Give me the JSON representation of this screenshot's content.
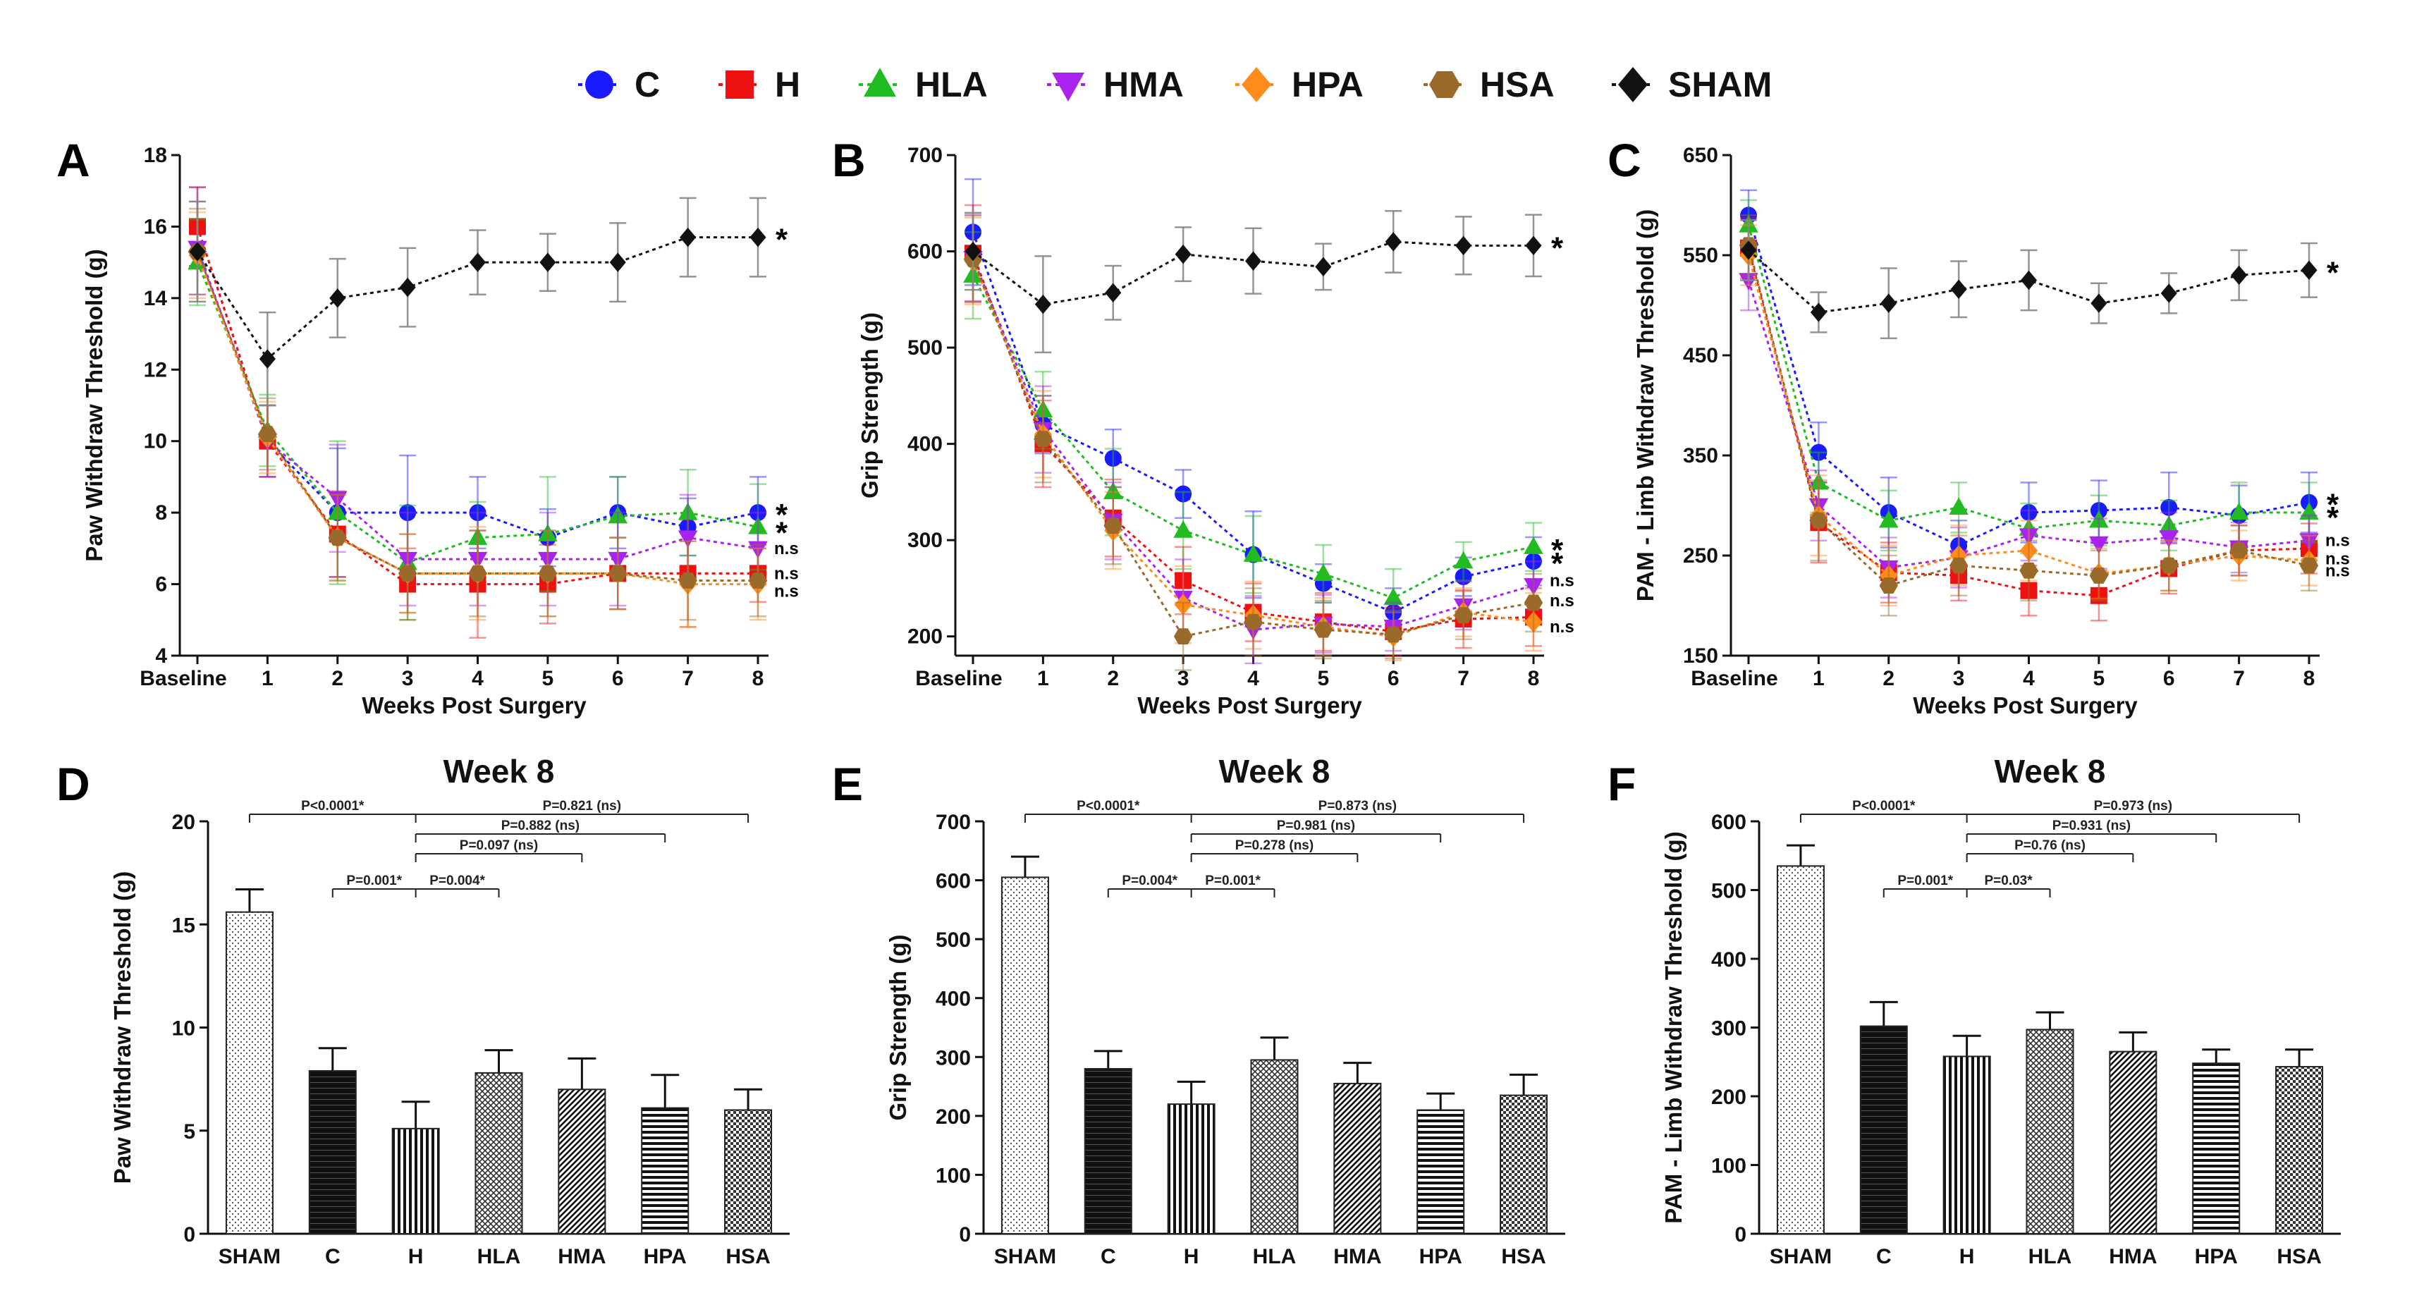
{
  "legend": [
    {
      "key": "C",
      "label": "C",
      "color": "#1a1aff",
      "marker": "circle"
    },
    {
      "key": "H",
      "label": "H",
      "color": "#ee1111",
      "marker": "square"
    },
    {
      "key": "HLA",
      "label": "HLA",
      "color": "#22bb22",
      "marker": "triangle-up"
    },
    {
      "key": "HMA",
      "label": "HMA",
      "color": "#aa22ee",
      "marker": "triangle-down"
    },
    {
      "key": "HPA",
      "label": "HPA",
      "color": "#ff8c1a",
      "marker": "diamond"
    },
    {
      "key": "HSA",
      "label": "HSA",
      "color": "#9a6a2a",
      "marker": "hexagon"
    },
    {
      "key": "SHAM",
      "label": "SHAM",
      "color": "#111111",
      "marker": "diamond"
    }
  ],
  "chart_data": [
    {
      "id": "A",
      "letter": "A",
      "type": "line",
      "title": "",
      "xlabel": "Weeks Post Surgery",
      "ylabel": "Paw Withdraw Threshold (g)",
      "categories": [
        "Baseline",
        "1",
        "2",
        "3",
        "4",
        "5",
        "6",
        "7",
        "8"
      ],
      "ylim": [
        4,
        18
      ],
      "yticks": [
        4,
        6,
        8,
        10,
        12,
        14,
        16,
        18
      ],
      "series": [
        {
          "name": "SHAM",
          "values": [
            15.3,
            12.3,
            14.0,
            14.3,
            15.0,
            15.0,
            15.0,
            15.7,
            15.7
          ],
          "err": [
            1.4,
            1.3,
            1.1,
            1.1,
            0.9,
            0.8,
            1.1,
            1.1,
            1.1
          ]
        },
        {
          "name": "C",
          "values": [
            16.0,
            10.0,
            8.0,
            8.0,
            8.0,
            7.3,
            8.0,
            7.6,
            8.0
          ],
          "err": [
            1.1,
            1.0,
            1.8,
            1.6,
            1.0,
            0.8,
            1.0,
            0.8,
            1.0
          ]
        },
        {
          "name": "H",
          "values": [
            16.0,
            10.0,
            7.4,
            6.0,
            6.0,
            6.0,
            6.3,
            6.3,
            6.3
          ],
          "err": [
            1.1,
            1.0,
            1.2,
            1.0,
            1.5,
            1.1,
            1.0,
            1.5,
            0.8
          ]
        },
        {
          "name": "HLA",
          "values": [
            15.0,
            10.3,
            8.0,
            6.6,
            7.3,
            7.4,
            7.9,
            8.0,
            7.6
          ],
          "err": [
            1.2,
            1.0,
            2.0,
            1.6,
            1.0,
            1.6,
            1.1,
            1.2,
            1.2
          ]
        },
        {
          "name": "HMA",
          "values": [
            15.4,
            10.0,
            8.4,
            6.7,
            6.7,
            6.7,
            6.7,
            7.3,
            7.0
          ],
          "err": [
            1.3,
            1.0,
            1.5,
            1.3,
            1.3,
            1.3,
            1.3,
            1.2,
            1.0
          ]
        },
        {
          "name": "HPA",
          "values": [
            15.2,
            10.1,
            7.3,
            6.3,
            6.3,
            6.3,
            6.3,
            6.0,
            6.0
          ],
          "err": [
            1.2,
            1.0,
            1.2,
            1.1,
            1.3,
            1.2,
            1.0,
            1.2,
            1.0
          ]
        },
        {
          "name": "HSA",
          "values": [
            15.3,
            10.2,
            7.3,
            6.3,
            6.3,
            6.3,
            6.3,
            6.1,
            6.1
          ],
          "err": [
            1.2,
            1.0,
            1.2,
            1.1,
            1.2,
            1.2,
            1.0,
            1.1,
            1.0
          ]
        }
      ],
      "end_labels": [
        {
          "value": 15.7,
          "text": "*",
          "big": true
        },
        {
          "value": 8.0,
          "text": "*",
          "big": true
        },
        {
          "value": 7.5,
          "text": "*",
          "big": true
        },
        {
          "value": 7.0,
          "text": "n.s",
          "big": false
        },
        {
          "value": 6.3,
          "text": "n.s",
          "big": false
        },
        {
          "value": 5.8,
          "text": "n.s",
          "big": false
        }
      ]
    },
    {
      "id": "B",
      "letter": "B",
      "type": "line",
      "title": "",
      "xlabel": "Weeks Post Surgery",
      "ylabel": "Grip Strength (g)",
      "categories": [
        "Baseline",
        "1",
        "2",
        "3",
        "4",
        "5",
        "6",
        "7",
        "8"
      ],
      "ylim": [
        180,
        700
      ],
      "yticks": [
        200,
        300,
        400,
        500,
        600,
        700
      ],
      "series": [
        {
          "name": "SHAM",
          "values": [
            600,
            545,
            557,
            597,
            590,
            584,
            610,
            606,
            606
          ],
          "err": [
            40,
            50,
            28,
            28,
            34,
            24,
            32,
            30,
            32
          ]
        },
        {
          "name": "C",
          "values": [
            620,
            420,
            385,
            348,
            285,
            255,
            225,
            262,
            278
          ],
          "err": [
            55,
            30,
            30,
            25,
            45,
            20,
            25,
            20,
            25
          ]
        },
        {
          "name": "H",
          "values": [
            598,
            400,
            323,
            258,
            225,
            215,
            205,
            218,
            220
          ],
          "err": [
            50,
            45,
            40,
            35,
            30,
            30,
            25,
            30,
            30
          ]
        },
        {
          "name": "HLA",
          "values": [
            575,
            435,
            350,
            310,
            285,
            265,
            240,
            278,
            293
          ],
          "err": [
            45,
            40,
            45,
            40,
            40,
            30,
            30,
            20,
            25
          ]
        },
        {
          "name": "HMA",
          "values": [
            593,
            415,
            320,
            240,
            207,
            213,
            210,
            232,
            253
          ],
          "err": [
            45,
            45,
            40,
            40,
            35,
            30,
            25,
            25,
            25
          ]
        },
        {
          "name": "HPA",
          "values": [
            590,
            410,
            310,
            233,
            222,
            210,
            200,
            225,
            215
          ],
          "err": [
            45,
            45,
            40,
            40,
            35,
            30,
            25,
            25,
            30
          ]
        },
        {
          "name": "HSA",
          "values": [
            592,
            405,
            315,
            200,
            215,
            207,
            202,
            222,
            235
          ],
          "err": [
            45,
            45,
            40,
            35,
            35,
            30,
            25,
            25,
            30
          ]
        }
      ],
      "end_labels": [
        {
          "value": 606,
          "text": "*",
          "big": true
        },
        {
          "value": 292,
          "text": "*",
          "big": true
        },
        {
          "value": 278,
          "text": "*",
          "big": true
        },
        {
          "value": 258,
          "text": "n.s",
          "big": false
        },
        {
          "value": 237,
          "text": "n.s",
          "big": false
        },
        {
          "value": 210,
          "text": "n.s",
          "big": false
        }
      ]
    },
    {
      "id": "C",
      "letter": "C",
      "type": "line",
      "title": "",
      "xlabel": "Weeks Post Surgery",
      "ylabel": "PAM - Limb Withdraw Threshold (g)",
      "categories": [
        "Baseline",
        "1",
        "2",
        "3",
        "4",
        "5",
        "6",
        "7",
        "8"
      ],
      "ylim": [
        150,
        650
      ],
      "yticks": [
        150,
        250,
        350,
        450,
        550,
        650
      ],
      "series": [
        {
          "name": "SHAM",
          "values": [
            555,
            493,
            502,
            516,
            525,
            502,
            512,
            530,
            535
          ],
          "err": [
            30,
            20,
            35,
            28,
            30,
            20,
            20,
            25,
            27
          ]
        },
        {
          "name": "C",
          "values": [
            590,
            353,
            293,
            260,
            293,
            295,
            298,
            290,
            303
          ],
          "err": [
            25,
            30,
            35,
            25,
            30,
            30,
            35,
            30,
            30
          ]
        },
        {
          "name": "H",
          "values": [
            557,
            283,
            233,
            230,
            215,
            210,
            237,
            255,
            257
          ],
          "err": [
            30,
            40,
            30,
            25,
            25,
            25,
            25,
            25,
            25
          ]
        },
        {
          "name": "HLA",
          "values": [
            580,
            323,
            285,
            298,
            277,
            285,
            280,
            293,
            293
          ],
          "err": [
            25,
            30,
            30,
            25,
            25,
            25,
            25,
            30,
            30
          ]
        },
        {
          "name": "HMA",
          "values": [
            525,
            300,
            238,
            248,
            270,
            262,
            268,
            258,
            265
          ],
          "err": [
            30,
            35,
            30,
            30,
            25,
            25,
            25,
            25,
            25
          ]
        },
        {
          "name": "HPA",
          "values": [
            550,
            290,
            230,
            250,
            255,
            232,
            240,
            250,
            245
          ],
          "err": [
            30,
            40,
            30,
            30,
            30,
            25,
            25,
            25,
            25
          ]
        },
        {
          "name": "HSA",
          "values": [
            560,
            285,
            220,
            240,
            235,
            230,
            240,
            255,
            240
          ],
          "err": [
            30,
            40,
            30,
            30,
            30,
            25,
            25,
            25,
            25
          ]
        }
      ],
      "end_labels": [
        {
          "value": 535,
          "text": "*",
          "big": true
        },
        {
          "value": 303,
          "text": "*",
          "big": true
        },
        {
          "value": 290,
          "text": "*",
          "big": true
        },
        {
          "value": 265,
          "text": "n.s",
          "big": false
        },
        {
          "value": 247,
          "text": "n.s",
          "big": false
        },
        {
          "value": 235,
          "text": "n.s",
          "big": false
        }
      ]
    },
    {
      "id": "D",
      "letter": "D",
      "type": "bar",
      "title": "Week 8",
      "xlabel": "",
      "ylabel": "Paw Withdraw Threshold (g)",
      "categories": [
        "SHAM",
        "C",
        "H",
        "HLA",
        "HMA",
        "HPA",
        "HSA"
      ],
      "values": [
        15.6,
        7.9,
        5.1,
        7.8,
        7.0,
        6.1,
        6.0
      ],
      "err": [
        1.1,
        1.1,
        1.3,
        1.1,
        1.5,
        1.6,
        1.0
      ],
      "ylim": [
        0,
        20
      ],
      "yticks": [
        0,
        5,
        10,
        15,
        20
      ],
      "comparisons": [
        {
          "from": 0,
          "to": [
            2,
            6
          ],
          "level": 0,
          "label": "P<0.0001*",
          "right_label": "P=0.821 (ns)"
        },
        {
          "from": 2,
          "to": [
            5
          ],
          "level": 1,
          "right_label": "P=0.882 (ns)"
        },
        {
          "from": 2,
          "to": [
            4
          ],
          "level": 2,
          "right_label": "P=0.097 (ns)"
        },
        {
          "from": 1,
          "to": [
            2,
            3
          ],
          "level": 3,
          "label": "P=0.001*",
          "right_label": "P=0.004*"
        }
      ]
    },
    {
      "id": "E",
      "letter": "E",
      "type": "bar",
      "title": "Week 8",
      "xlabel": "",
      "ylabel": "Grip Strength (g)",
      "categories": [
        "SHAM",
        "C",
        "H",
        "HLA",
        "HMA",
        "HPA",
        "HSA"
      ],
      "values": [
        605,
        280,
        220,
        295,
        255,
        210,
        235
      ],
      "err": [
        35,
        30,
        38,
        38,
        35,
        28,
        35
      ],
      "ylim": [
        0,
        700
      ],
      "yticks": [
        0,
        100,
        200,
        300,
        400,
        500,
        600,
        700
      ],
      "comparisons": [
        {
          "from": 0,
          "to": [
            2,
            6
          ],
          "level": 0,
          "label": "P<0.0001*",
          "right_label": "P=0.873 (ns)"
        },
        {
          "from": 2,
          "to": [
            5
          ],
          "level": 1,
          "right_label": "P=0.981 (ns)"
        },
        {
          "from": 2,
          "to": [
            4
          ],
          "level": 2,
          "right_label": "P=0.278 (ns)"
        },
        {
          "from": 1,
          "to": [
            2,
            3
          ],
          "level": 3,
          "label": "P=0.004*",
          "right_label": "P=0.001*"
        }
      ]
    },
    {
      "id": "F",
      "letter": "F",
      "type": "bar",
      "title": "Week 8",
      "xlabel": "",
      "ylabel": "PAM - Limb Withdraw Threshold (g)",
      "categories": [
        "SHAM",
        "C",
        "H",
        "HLA",
        "HMA",
        "HPA",
        "HSA"
      ],
      "values": [
        535,
        302,
        258,
        297,
        265,
        248,
        243
      ],
      "err": [
        30,
        35,
        30,
        25,
        28,
        20,
        25
      ],
      "ylim": [
        0,
        600
      ],
      "yticks": [
        0,
        100,
        200,
        300,
        400,
        500,
        600
      ],
      "comparisons": [
        {
          "from": 0,
          "to": [
            2,
            6
          ],
          "level": 0,
          "label": "P<0.0001*",
          "right_label": "P=0.973 (ns)"
        },
        {
          "from": 2,
          "to": [
            5
          ],
          "level": 1,
          "right_label": "P=0.931 (ns)"
        },
        {
          "from": 2,
          "to": [
            4
          ],
          "level": 2,
          "right_label": "P=0.76 (ns)"
        },
        {
          "from": 1,
          "to": [
            2,
            3
          ],
          "level": 3,
          "label": "P=0.001*",
          "right_label": "P=0.03*"
        }
      ]
    }
  ]
}
